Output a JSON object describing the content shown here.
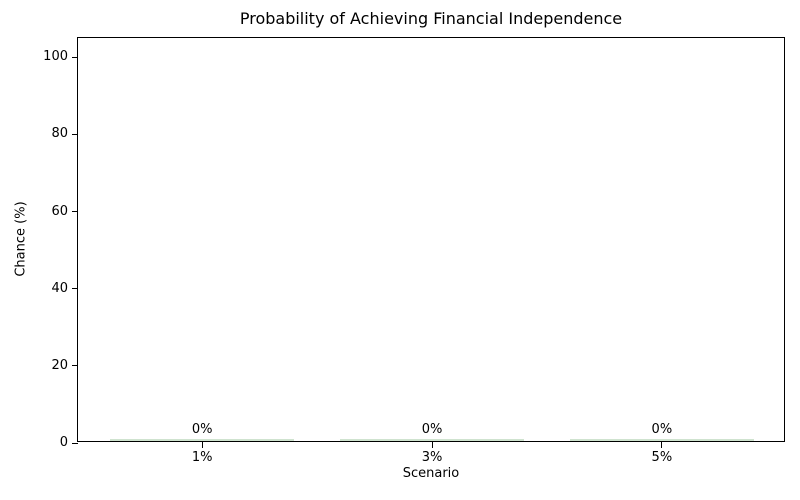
{
  "chart_data": {
    "type": "bar",
    "title": "Probability of Achieving Financial Independence",
    "xlabel": "Scenario",
    "ylabel": "Chance (%)",
    "categories": [
      "1%",
      "3%",
      "5%"
    ],
    "values": [
      0,
      0,
      0
    ],
    "bar_value_labels": [
      "0%",
      "0%",
      "0%"
    ],
    "yticks": [
      0,
      20,
      40,
      60,
      80,
      100
    ],
    "ylim": [
      0,
      105
    ],
    "xlim": [
      -0.54,
      2.54
    ],
    "bar_width": 0.8,
    "bar_color": "#cfe3cf",
    "spine_color": "#000000",
    "grid": false,
    "legend_position": "none"
  }
}
